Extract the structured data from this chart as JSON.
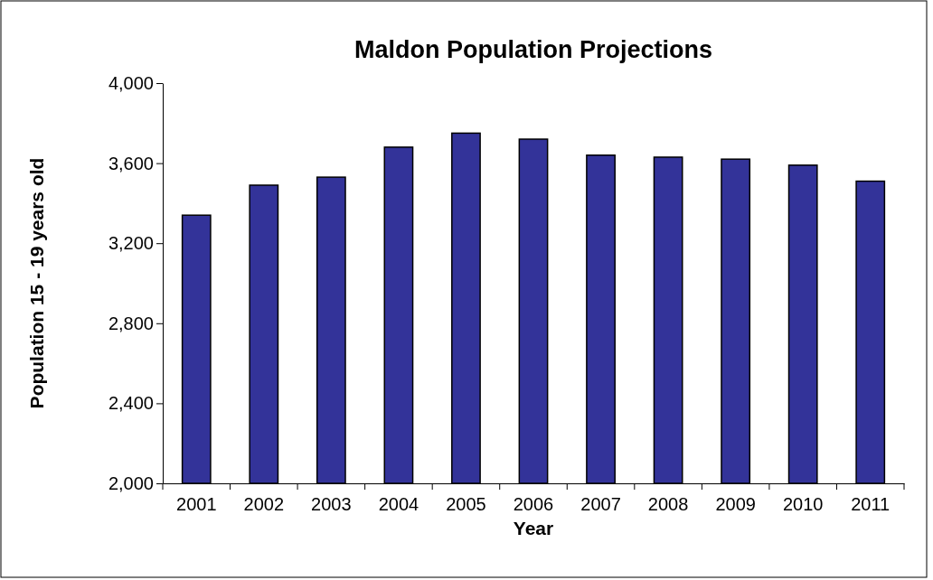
{
  "chart_data": {
    "type": "bar",
    "title": "Maldon Population Projections",
    "xlabel": "Year",
    "ylabel": "Population 15 - 19 years old",
    "categories": [
      "2001",
      "2002",
      "2003",
      "2004",
      "2005",
      "2006",
      "2007",
      "2008",
      "2009",
      "2010",
      "2011"
    ],
    "values": [
      3340,
      3490,
      3530,
      3680,
      3750,
      3720,
      3640,
      3630,
      3620,
      3590,
      3510
    ],
    "color": "#333399",
    "ylim": [
      2000,
      4000
    ],
    "yticks": [
      {
        "value": 2000,
        "label": "2,000"
      },
      {
        "value": 2400,
        "label": "2,400"
      },
      {
        "value": 2800,
        "label": "2,800"
      },
      {
        "value": 3200,
        "label": "3,200"
      },
      {
        "value": 3600,
        "label": "3,600"
      },
      {
        "value": 4000,
        "label": "4,000"
      }
    ]
  }
}
